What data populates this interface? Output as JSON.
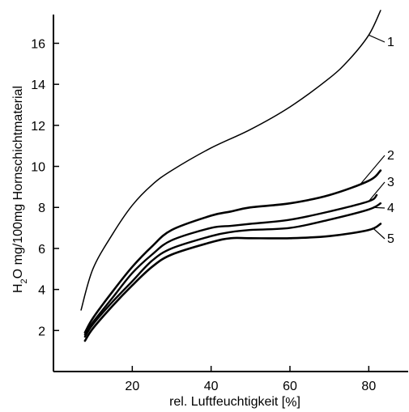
{
  "chart_data": {
    "type": "line",
    "title": "",
    "xlabel": "rel. Luftfeuchtigkeit [%]",
    "ylabel": "H2O mg/100mg Hornschichtmaterial",
    "xlim": [
      0,
      90
    ],
    "ylim": [
      0,
      17.4
    ],
    "xticks": [
      20,
      40,
      60,
      80
    ],
    "yticks": [
      2,
      4,
      6,
      8,
      10,
      12,
      14,
      16
    ],
    "grid": false,
    "series": [
      {
        "name": "1",
        "x": [
          7,
          10,
          15,
          20,
          25,
          30,
          40,
          50,
          60,
          70,
          75,
          80,
          83
        ],
        "y": [
          3.0,
          5.0,
          6.7,
          8.1,
          9.1,
          9.8,
          10.9,
          11.8,
          12.9,
          14.3,
          15.2,
          16.4,
          17.6
        ]
      },
      {
        "name": "2",
        "x": [
          8,
          10,
          15,
          20,
          25,
          30,
          40,
          45,
          50,
          60,
          70,
          80,
          83
        ],
        "y": [
          1.9,
          2.6,
          3.9,
          5.1,
          6.1,
          6.9,
          7.6,
          7.8,
          8.0,
          8.2,
          8.6,
          9.3,
          9.8
        ]
      },
      {
        "name": "3",
        "x": [
          8,
          10,
          15,
          20,
          25,
          30,
          40,
          45,
          50,
          60,
          70,
          80,
          82
        ],
        "y": [
          1.8,
          2.4,
          3.6,
          4.8,
          5.7,
          6.4,
          7.0,
          7.1,
          7.2,
          7.4,
          7.8,
          8.3,
          8.6
        ]
      },
      {
        "name": "4",
        "x": [
          8,
          10,
          15,
          20,
          25,
          30,
          40,
          45,
          50,
          60,
          70,
          80,
          83
        ],
        "y": [
          1.7,
          2.3,
          3.4,
          4.4,
          5.4,
          6.0,
          6.6,
          6.8,
          6.9,
          7.0,
          7.4,
          7.9,
          8.2
        ]
      },
      {
        "name": "5",
        "x": [
          8,
          10,
          15,
          20,
          25,
          30,
          40,
          45,
          50,
          60,
          70,
          80,
          83
        ],
        "y": [
          1.5,
          2.1,
          3.2,
          4.2,
          5.1,
          5.7,
          6.3,
          6.5,
          6.5,
          6.5,
          6.6,
          6.9,
          7.2
        ]
      }
    ],
    "labels": {
      "y_prefix_1": "H",
      "y_sub": "2",
      "y_rest": "O mg/100mg Hornschichtmaterial",
      "x_main": "rel. Luftfeuchtigkeit [",
      "x_pct": "%",
      "x_end": "]"
    }
  }
}
